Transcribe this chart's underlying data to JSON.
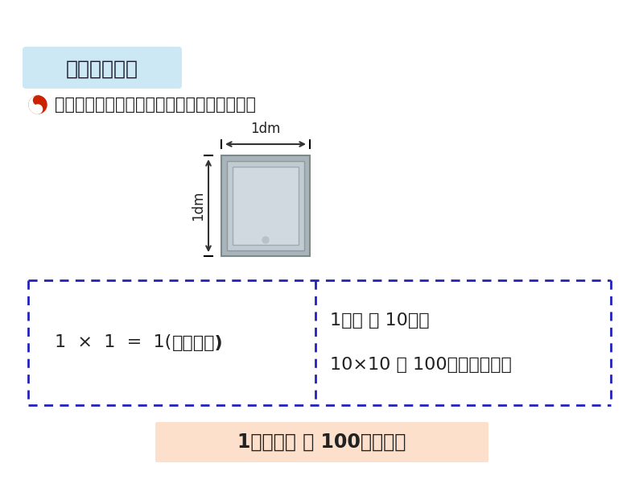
{
  "bg_color": "#ffffff",
  "title_box_color": "#cce8f4",
  "title_text": "二、合作探究",
  "question_text": "开关的面积是多少平方分米？多少平方厘米？",
  "switch_label_top": "1dm",
  "switch_label_left": "1dm",
  "box1_text": "1  ×  1  =  1(平方分米)",
  "box2_line1": "1分米 ＝ 10厘米",
  "box2_line2": "10×10 ＝ 100（平方厘米）",
  "bottom_text": "1平方分米 ＝ 100平方厘米",
  "dashed_color": "#2222bb",
  "bottom_box_color": "#fce0cc",
  "sw_outer_color": "#a8b4bc",
  "sw_mid_color": "#c0ccd4",
  "sw_inner_color": "#d0d8e0",
  "sw_btn_color": "#c8d0d8"
}
